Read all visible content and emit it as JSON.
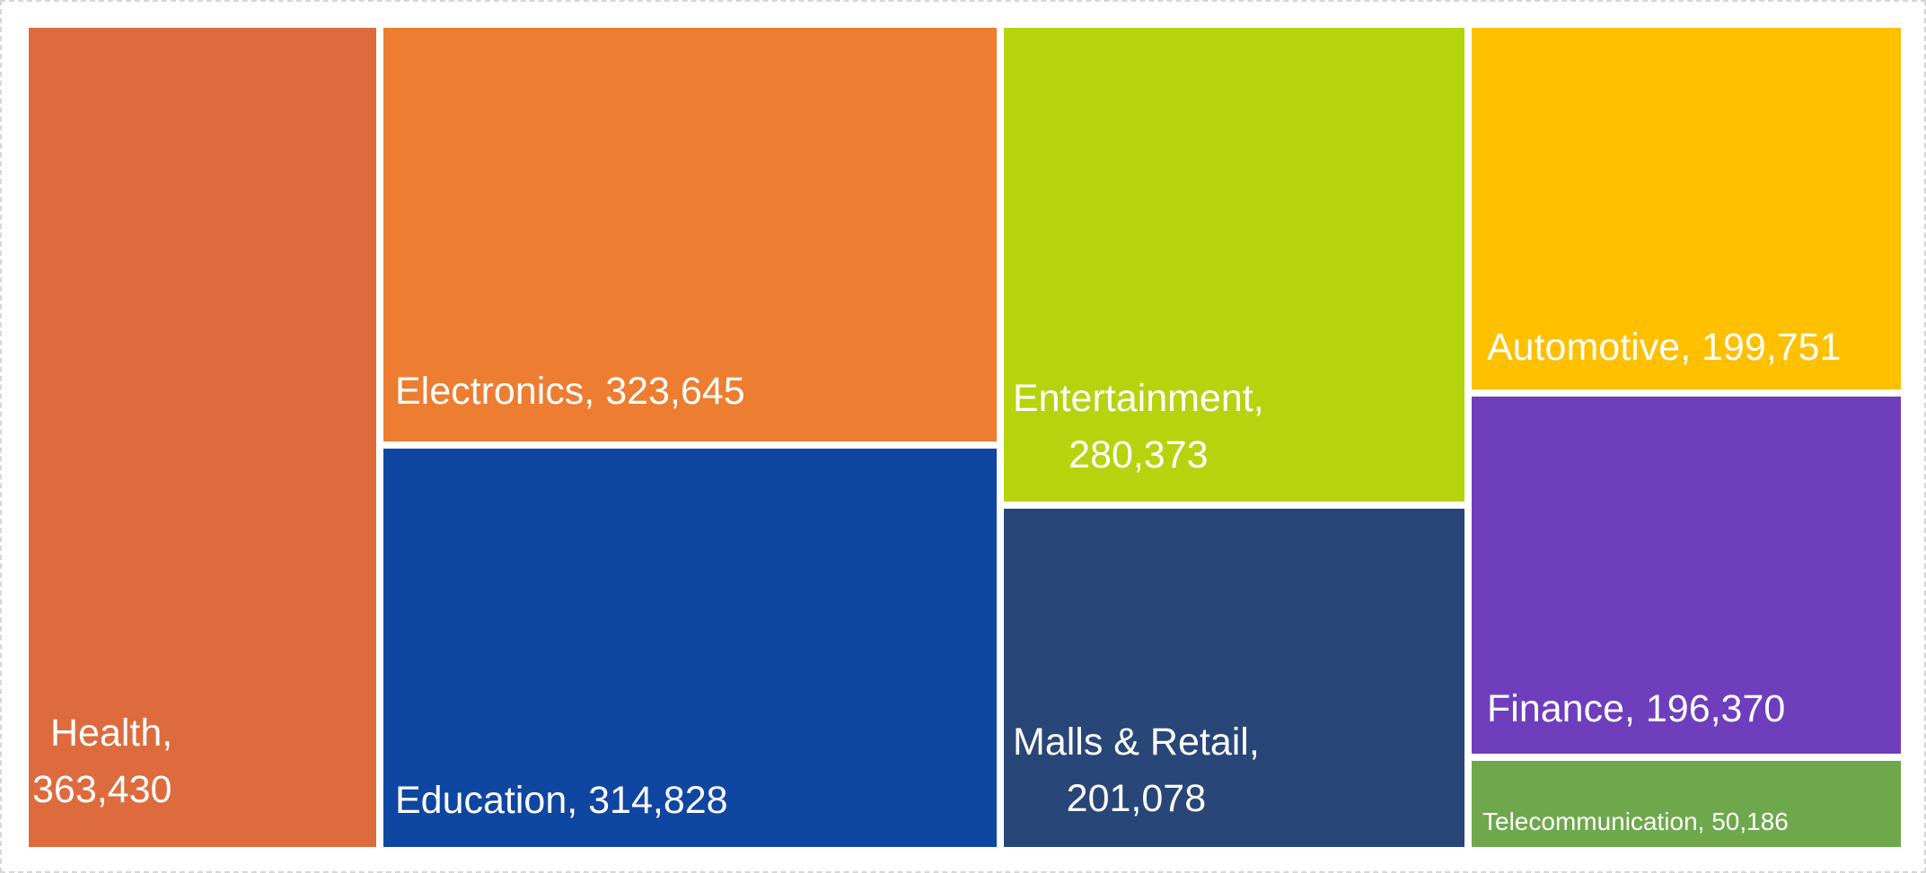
{
  "chart_data": {
    "type": "treemap",
    "legend": "none",
    "value_format": "#,##0",
    "items": [
      {
        "category": "Health",
        "value": 363430,
        "label": "Health,\n363,430",
        "color": "#DD6B3D"
      },
      {
        "category": "Electronics",
        "value": 323645,
        "label": "Electronics, 323,645",
        "color": "#ED7D31"
      },
      {
        "category": "Education",
        "value": 314828,
        "label": "Education, 314,828",
        "color": "#0F46A1"
      },
      {
        "category": "Entertainment",
        "value": 280373,
        "label": "Entertainment,\n280,373",
        "color": "#B5D40E"
      },
      {
        "category": "Malls & Retail",
        "value": 201078,
        "label": "Malls & Retail,\n201,078",
        "color": "#284677"
      },
      {
        "category": "Automotive",
        "value": 199751,
        "label": "Automotive, 199,751",
        "color": "#FFC000"
      },
      {
        "category": "Finance",
        "value": 196370,
        "label": "Finance, 196,370",
        "color": "#6E3EBD"
      },
      {
        "category": "Telecommunication",
        "value": 50186,
        "label": "Telecommunication, 50,186",
        "color": "#6FA84C"
      }
    ],
    "colors": {
      "gap": "#FFFFFF",
      "frame_border": "#D6D6D6",
      "label_text": "#FFFFFF"
    }
  }
}
